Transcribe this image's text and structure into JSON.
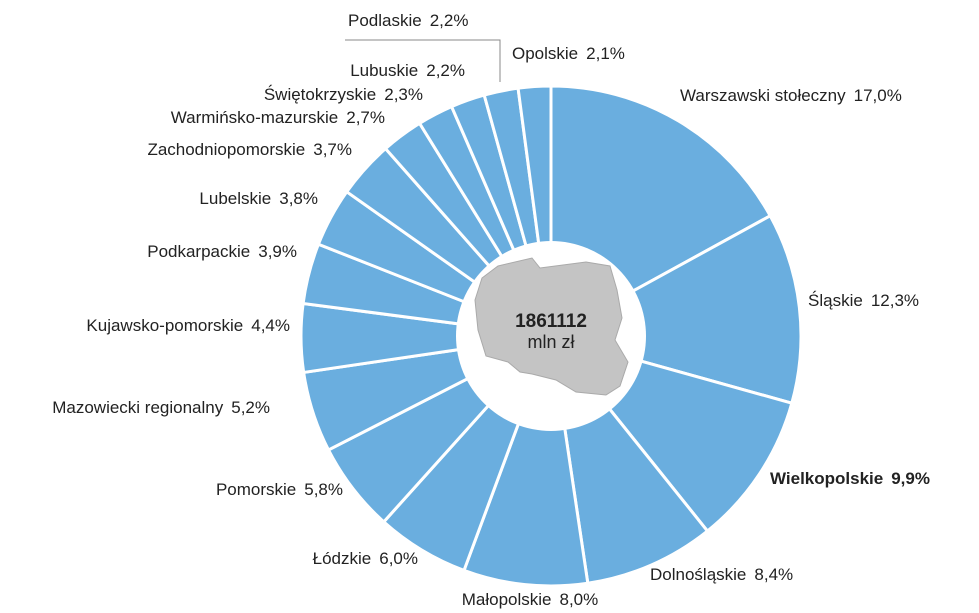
{
  "chart_data": {
    "type": "donut",
    "categories": [
      "Warszawski stołeczny",
      "Śląskie",
      "Wielkopolskie",
      "Dolnośląskie",
      "Małopolskie",
      "Łódzkie",
      "Pomorskie",
      "Mazowiecki regionalny",
      "Kujawsko-pomorskie",
      "Podkarpackie",
      "Lubelskie",
      "Zachodniopomorskie",
      "Warmińsko-mazurskie",
      "Świętokrzyskie",
      "Lubuskie",
      "Podlaskie",
      "Opolskie"
    ],
    "values": [
      17.0,
      12.3,
      9.9,
      8.4,
      8.0,
      6.0,
      5.8,
      5.2,
      4.4,
      3.9,
      3.8,
      3.7,
      2.7,
      2.3,
      2.2,
      2.2,
      2.1
    ],
    "value_labels": [
      "17,0%",
      "12,3%",
      "9,9%",
      "8,4%",
      "8,0%",
      "6,0%",
      "5,8%",
      "5,2%",
      "4,4%",
      "3,9%",
      "3,8%",
      "3,7%",
      "2,7%",
      "2,3%",
      "2,2%",
      "2,2%",
      "2,1%"
    ],
    "color": "#6aaedf",
    "highlight": 2,
    "center_value": "1861112",
    "center_unit": "mln zł"
  }
}
